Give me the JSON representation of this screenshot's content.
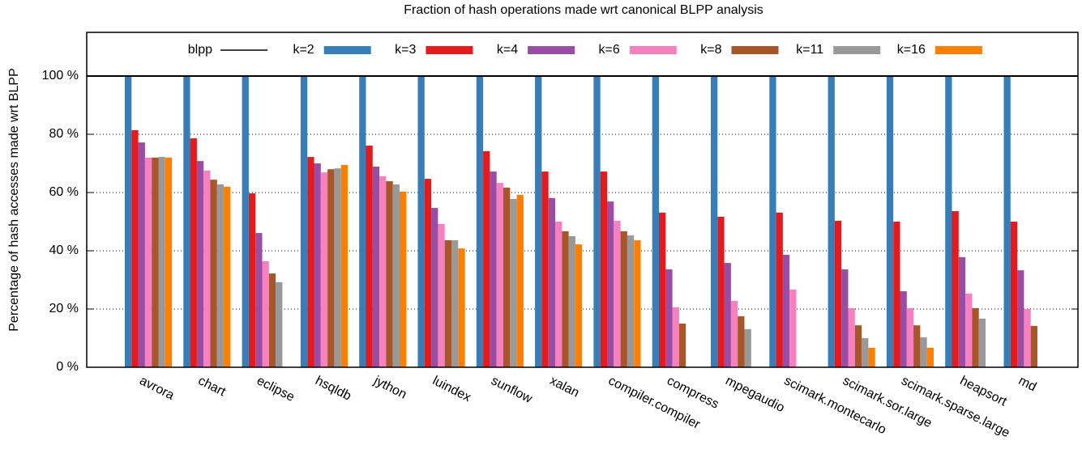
{
  "chart_data": {
    "type": "bar",
    "title": "Fraction of hash operations made wrt canonical BLPP analysis",
    "y_label": "Percentage of hash accesses made wrt BLPP",
    "categories": [
      "avrora",
      "chart",
      "eclipse",
      "hsqldb",
      "jython",
      "luindex",
      "sunflow",
      "xalan",
      "compiler.compiler",
      "compress",
      "mpegaudio",
      "scimark.montecarlo",
      "scimark.sor.large",
      "scimark.sparse.large",
      "heapsort",
      "md"
    ],
    "reference_line": {
      "name": "blpp",
      "value": 100,
      "color": "#000000"
    },
    "series": [
      {
        "name": "k=2",
        "color": "#377eb8",
        "values": [
          100,
          100,
          100,
          100,
          100,
          100,
          100,
          100,
          100,
          100,
          100,
          100,
          100,
          100,
          100,
          100
        ]
      },
      {
        "name": "k=3",
        "color": "#e41a1c",
        "values": [
          81.4,
          78.6,
          59.7,
          72.2,
          76.1,
          64.7,
          74.2,
          67.2,
          67.2,
          53.1,
          51.7,
          53.1,
          50.3,
          50,
          53.6,
          50
        ]
      },
      {
        "name": "k=4",
        "color": "#984ea3",
        "values": [
          77.2,
          70.8,
          46.1,
          70,
          68.9,
          54.7,
          67.2,
          58.1,
          56.9,
          33.6,
          35.8,
          38.6,
          33.6,
          26.1,
          37.8,
          33.3
        ]
      },
      {
        "name": "k=6",
        "color": "#f781bf",
        "values": [
          72,
          67.5,
          36.4,
          66.9,
          65.6,
          49.2,
          63.3,
          50,
          50.3,
          20.6,
          22.8,
          26.7,
          20.3,
          20.3,
          25.3,
          20
        ]
      },
      {
        "name": "k=8",
        "color": "#a65628",
        "values": [
          72,
          64.4,
          32.2,
          68,
          63.9,
          43.6,
          61.7,
          46.7,
          46.7,
          15,
          17.5,
          null,
          14.4,
          14.4,
          20.3,
          14.2
        ]
      },
      {
        "name": "k=11",
        "color": "#999999",
        "values": [
          72.2,
          62.8,
          29.2,
          68.3,
          62.8,
          43.6,
          57.8,
          45,
          45.3,
          null,
          13.1,
          null,
          10,
          10.3,
          16.7,
          null
        ]
      },
      {
        "name": "k=16",
        "color": "#ff7f00",
        "values": [
          72,
          62,
          null,
          69.5,
          60.3,
          40.8,
          59.2,
          42.2,
          43.6,
          null,
          null,
          null,
          6.7,
          6.7,
          null,
          null
        ]
      }
    ],
    "ylim": [
      0,
      115
    ],
    "yticks": [
      {
        "value": 0,
        "label": "0 %"
      },
      {
        "value": 20,
        "label": "20 %"
      },
      {
        "value": 40,
        "label": "40 %"
      },
      {
        "value": 60,
        "label": "60 %"
      },
      {
        "value": 80,
        "label": "80 %"
      },
      {
        "value": 100,
        "label": "100 %"
      }
    ],
    "grid": true
  }
}
